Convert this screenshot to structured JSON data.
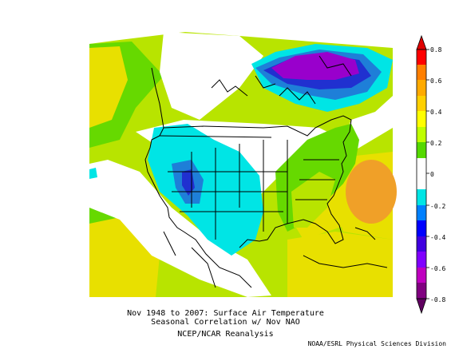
{
  "caption": {
    "line1": "Nov 1948 to 2007: Surface Air Temperature",
    "line2": "Seasonal Correlation w/ Nov NAO",
    "line3": "NCEP/NCAR Reanalysis"
  },
  "credit": "NOAA/ESRL Physical Sciences Division",
  "legend": {
    "ticks": [
      "0.8",
      "0.6",
      "0.4",
      "0.2",
      "0",
      "-0.2",
      "-0.4",
      "-0.6",
      "-0.8"
    ],
    "colors": [
      "#ff0000",
      "#ff7f00",
      "#ffbf00",
      "#ffff00",
      "#bfff00",
      "#55d900",
      "#ffffff",
      "#ffffff",
      "#00e5e5",
      "#0080ff",
      "#0000ff",
      "#8000ff",
      "#bf00bf",
      "#800080"
    ]
  },
  "map": {
    "domain": "North America",
    "variable": "Surface Air Temperature correlation",
    "colors": {
      "strong_pos": "#f0a028",
      "mod_pos": "#e8e000",
      "weak_pos": "#b8e400",
      "slight_pos": "#66d900",
      "neutral": "#ffffff",
      "slight_neg": "#00e5e5",
      "mod_neg": "#1e7fd8",
      "strong_neg": "#2030d0",
      "very_neg": "#9900cc",
      "extreme_neg": "#b000b0"
    }
  }
}
